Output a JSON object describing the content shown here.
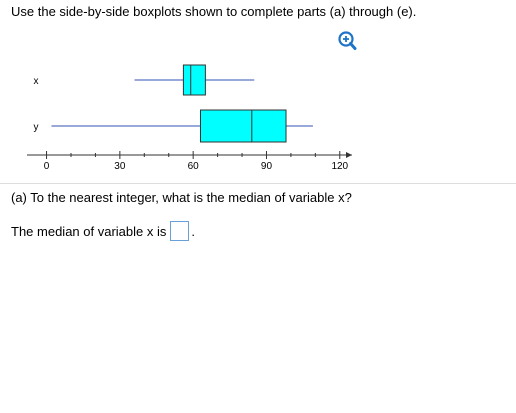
{
  "header": {
    "instruction": "Use the side-by-side boxplots shown to complete parts (a) through (e)."
  },
  "chart": {
    "type": "boxplot",
    "series": [
      {
        "name": "x",
        "min": 36,
        "q1": 56,
        "median": 59,
        "q3": 65,
        "max": 85
      },
      {
        "name": "y",
        "min": 2,
        "q1": 63,
        "median": 84,
        "q3": 98,
        "max": 109
      }
    ],
    "box_color": "#00ffff",
    "whisker_color": "#3050b0",
    "xlim": [
      -8,
      125
    ],
    "xticks": [
      0,
      30,
      60,
      90,
      120
    ],
    "minor_xticks": [
      10,
      20,
      40,
      50,
      70,
      80,
      100,
      110
    ]
  },
  "question": {
    "text": "(a) To the nearest integer, what is the median of variable x?"
  },
  "answer": {
    "prompt": "The median of variable x is",
    "suffix": "."
  }
}
